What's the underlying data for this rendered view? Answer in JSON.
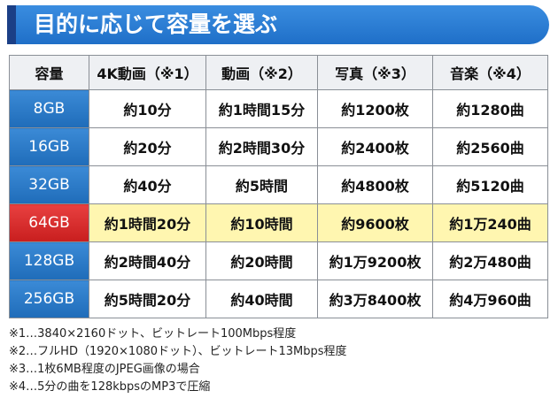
{
  "header": {
    "title": "目的に応じて容量を選ぶ"
  },
  "table": {
    "header": [
      "容量",
      "4K動画（※1）",
      "動画（※2）",
      "写真（※3）",
      "音楽（※4）"
    ],
    "rows": [
      [
        "8GB",
        "約10分",
        "約1時間15分",
        "約1200枚",
        "約1280曲"
      ],
      [
        "16GB",
        "約20分",
        "約2時間30分",
        "約2400枚",
        "約2560曲"
      ],
      [
        "32GB",
        "約40分",
        "約5時間",
        "約4800枚",
        "約5120曲"
      ],
      [
        "64GB",
        "約1時間20分",
        "約10時間",
        "約9600枚",
        "約1万240曲"
      ],
      [
        "128GB",
        "約2時間40分",
        "約20時間",
        "約1万9200枚",
        "約2万480曲"
      ],
      [
        "256GB",
        "約5時間20分",
        "約40時間",
        "約3万8400枚",
        "約4万960曲"
      ]
    ]
  },
  "notes": [
    "※1…3840×2160ドット、ビットレート100Mbps程度",
    "※2…フルHD（1920×1080ドット）、ビットレート13Mbps程度",
    "※3…1枚6MB程度のJPEG画像の場合",
    "※4…5分の曲を128kbpsのMP3で圧縮"
  ]
}
